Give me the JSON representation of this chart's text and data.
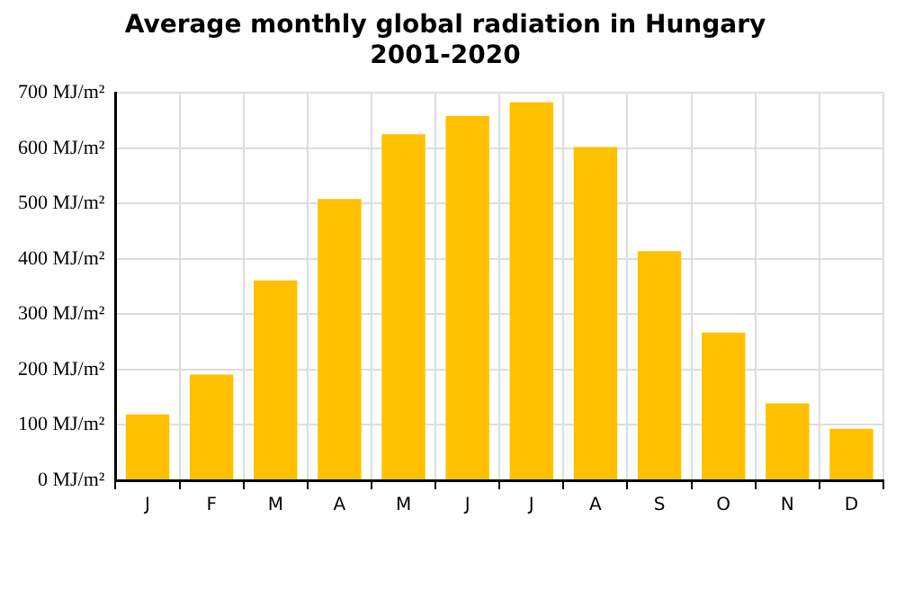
{
  "chart_data": {
    "type": "bar",
    "title": "Average monthly global radiation in Hungary",
    "subtitle": "2001-2020",
    "categories": [
      "J",
      "F",
      "M",
      "A",
      "M",
      "J",
      "J",
      "A",
      "S",
      "O",
      "N",
      "D"
    ],
    "values": [
      119,
      191,
      361,
      508,
      625,
      658,
      683,
      602,
      414,
      267,
      139,
      93
    ],
    "color": "#ffc000",
    "ylim": [
      0,
      700
    ],
    "yticks": [
      {
        "value": 0,
        "label": "0 MJ/m²"
      },
      {
        "value": 100,
        "label": "100 MJ/m²"
      },
      {
        "value": 200,
        "label": "200 MJ/m²"
      },
      {
        "value": 300,
        "label": "300 MJ/m²"
      },
      {
        "value": 400,
        "label": "400 MJ/m²"
      },
      {
        "value": 500,
        "label": "500 MJ/m²"
      },
      {
        "value": 600,
        "label": "600 MJ/m²"
      },
      {
        "value": 700,
        "label": "700 MJ/m²"
      }
    ],
    "grid": true
  }
}
